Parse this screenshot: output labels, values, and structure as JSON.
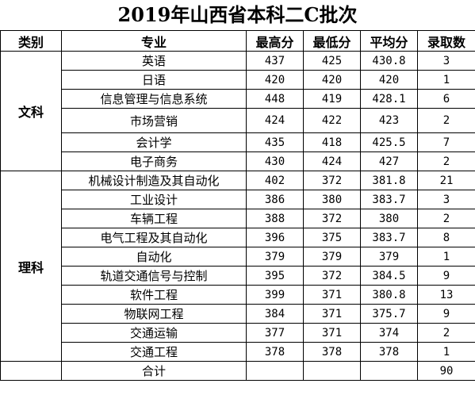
{
  "title": "2019年山西省本科二C批次",
  "headers": {
    "category": "类别",
    "major": "专业",
    "max": "最高分",
    "min": "最低分",
    "avg": "平均分",
    "count": "录取数"
  },
  "groups": {
    "wen": {
      "label": "文科",
      "rows": [
        {
          "major": "英语",
          "max": "437",
          "min": "425",
          "avg": "430.8",
          "count": "3"
        },
        {
          "major": "日语",
          "max": "420",
          "min": "420",
          "avg": "420",
          "count": "1"
        },
        {
          "major": "信息管理与信息系统",
          "max": "448",
          "min": "419",
          "avg": "428.1",
          "count": "6"
        },
        {
          "major": "市场营销",
          "max": "424",
          "min": "422",
          "avg": "423",
          "count": "2"
        },
        {
          "major": "会计学",
          "max": "435",
          "min": "418",
          "avg": "425.5",
          "count": "7"
        },
        {
          "major": "电子商务",
          "max": "430",
          "min": "424",
          "avg": "427",
          "count": "2"
        }
      ]
    },
    "li": {
      "label": "理科",
      "rows": [
        {
          "major": "机械设计制造及其自动化",
          "max": "402",
          "min": "372",
          "avg": "381.8",
          "count": "21"
        },
        {
          "major": "工业设计",
          "max": "386",
          "min": "380",
          "avg": "383.7",
          "count": "3"
        },
        {
          "major": "车辆工程",
          "max": "388",
          "min": "372",
          "avg": "380",
          "count": "2"
        },
        {
          "major": "电气工程及其自动化",
          "max": "396",
          "min": "375",
          "avg": "383.7",
          "count": "8"
        },
        {
          "major": "自动化",
          "max": "379",
          "min": "379",
          "avg": "379",
          "count": "1"
        },
        {
          "major": "轨道交通信号与控制",
          "max": "395",
          "min": "372",
          "avg": "384.5",
          "count": "9"
        },
        {
          "major": "软件工程",
          "max": "399",
          "min": "371",
          "avg": "380.8",
          "count": "13"
        },
        {
          "major": "物联网工程",
          "max": "384",
          "min": "371",
          "avg": "375.7",
          "count": "9"
        },
        {
          "major": "交通运输",
          "max": "377",
          "min": "371",
          "avg": "374",
          "count": "2"
        },
        {
          "major": "交通工程",
          "max": "378",
          "min": "378",
          "avg": "378",
          "count": "1"
        }
      ]
    }
  },
  "total": {
    "label": "合计",
    "count": "90"
  }
}
